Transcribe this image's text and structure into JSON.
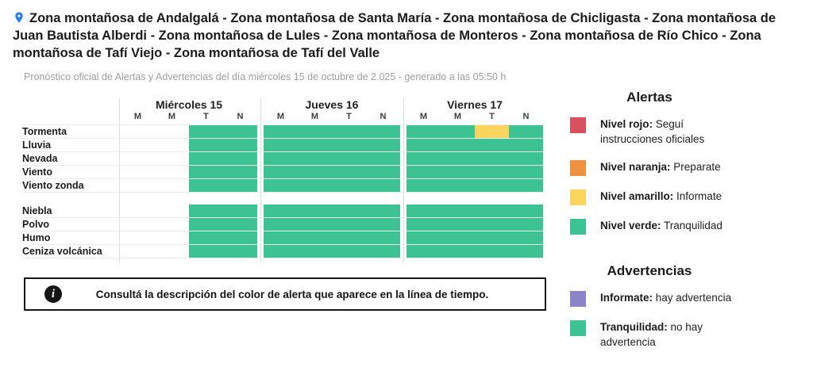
{
  "header": {
    "pin_color": "#2b7de0",
    "title": "Zona montañosa de Andalgalá - Zona montañosa de Santa María - Zona montañosa de Chicligasta - Zona montañosa de Juan Bautista Alberdi - Zona montañosa de Lules - Zona montañosa de Monteros - Zona montañosa de Río Chico - Zona montañosa de Tafí Viejo - Zona montañosa de Tafí del Valle",
    "subtitle": "Pronóstico oficial de Alertas y Advertencias del día miércoles 15 de octubre de 2.025 - generado a las 05:50 h"
  },
  "timeline": {
    "days": [
      {
        "label": "Miércoles 15",
        "slots": [
          "M",
          "M",
          "T",
          "N"
        ]
      },
      {
        "label": "Jueves 16",
        "slots": [
          "M",
          "M",
          "T",
          "N"
        ]
      },
      {
        "label": "Viernes 17",
        "slots": [
          "M",
          "M",
          "T",
          "N"
        ]
      }
    ],
    "cell_colors": {
      "g": "#3cc293",
      "y": "#fbd45c"
    },
    "groups": [
      {
        "rows": [
          {
            "label": "Tormenta",
            "cells": [
              "e",
              "e",
              "g",
              "g",
              "g",
              "g",
              "g",
              "g",
              "g",
              "g",
              "y",
              "g"
            ]
          },
          {
            "label": "Lluvia",
            "cells": [
              "e",
              "e",
              "g",
              "g",
              "g",
              "g",
              "g",
              "g",
              "g",
              "g",
              "g",
              "g"
            ]
          },
          {
            "label": "Nevada",
            "cells": [
              "e",
              "e",
              "g",
              "g",
              "g",
              "g",
              "g",
              "g",
              "g",
              "g",
              "g",
              "g"
            ]
          },
          {
            "label": "Viento",
            "cells": [
              "e",
              "e",
              "g",
              "g",
              "g",
              "g",
              "g",
              "g",
              "g",
              "g",
              "g",
              "g"
            ]
          },
          {
            "label": "Viento zonda",
            "cells": [
              "e",
              "e",
              "g",
              "g",
              "g",
              "g",
              "g",
              "g",
              "g",
              "g",
              "g",
              "g"
            ]
          }
        ]
      },
      {
        "rows": [
          {
            "label": "Niebla",
            "cells": [
              "e",
              "e",
              "g",
              "g",
              "g",
              "g",
              "g",
              "g",
              "g",
              "g",
              "g",
              "g"
            ]
          },
          {
            "label": "Polvo",
            "cells": [
              "e",
              "e",
              "g",
              "g",
              "g",
              "g",
              "g",
              "g",
              "g",
              "g",
              "g",
              "g"
            ]
          },
          {
            "label": "Humo",
            "cells": [
              "e",
              "e",
              "g",
              "g",
              "g",
              "g",
              "g",
              "g",
              "g",
              "g",
              "g",
              "g"
            ]
          },
          {
            "label": "Ceniza volcánica",
            "cells": [
              "e",
              "e",
              "g",
              "g",
              "g",
              "g",
              "g",
              "g",
              "g",
              "g",
              "g",
              "g"
            ]
          }
        ]
      }
    ]
  },
  "info_box": {
    "text": "Consultá la descripción del color de alerta que aparece en la línea de tiempo."
  },
  "legend": {
    "alertas": {
      "title": "Alertas",
      "items": [
        {
          "label": "Nivel rojo:",
          "text": "Seguí instrucciones oficiales",
          "color": "#d8505d"
        },
        {
          "label": "Nivel naranja:",
          "text": "Preparate",
          "color": "#ee9140"
        },
        {
          "label": "Nivel amarillo:",
          "text": "Informate",
          "color": "#fbd45c"
        },
        {
          "label": "Nivel verde:",
          "text": "Tranquilidad",
          "color": "#3cc293"
        }
      ]
    },
    "advertencias": {
      "title": "Advertencias",
      "items": [
        {
          "label": "Informate:",
          "text": "hay advertencia",
          "color": "#8b84c8"
        },
        {
          "label": "Tranquilidad:",
          "text": "no hay advertencia",
          "color": "#3cc293"
        }
      ]
    }
  }
}
